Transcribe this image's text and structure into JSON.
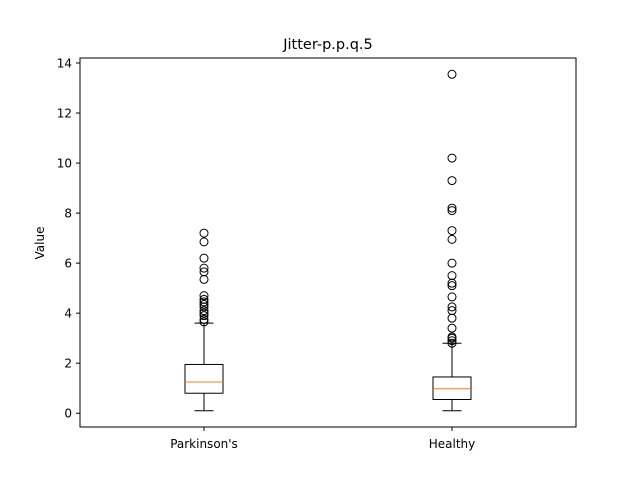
{
  "chart_data": {
    "type": "box",
    "title": "Jitter-p.p.q.5",
    "xlabel": "",
    "ylabel": "Value",
    "ylim": [
      -0.55,
      14.2
    ],
    "yticks": [
      0,
      2,
      4,
      6,
      8,
      10,
      12,
      14
    ],
    "grid": false,
    "colors": {
      "box": "#000000",
      "median": "#ff7f0e",
      "flier": "#000000"
    },
    "categories": [
      "Parkinson's",
      "Healthy"
    ],
    "boxes": [
      {
        "name": "Parkinson's",
        "whisker_low": 0.1,
        "q1": 0.8,
        "median": 1.25,
        "q3": 1.95,
        "whisker_high": 3.6,
        "fliers": [
          3.65,
          3.75,
          3.9,
          4.0,
          4.1,
          4.25,
          4.35,
          4.45,
          4.55,
          4.7,
          5.35,
          5.65,
          5.8,
          6.2,
          6.85,
          7.2
        ]
      },
      {
        "name": "Healthy",
        "whisker_low": 0.1,
        "q1": 0.55,
        "median": 0.98,
        "q3": 1.45,
        "whisker_high": 2.8,
        "fliers": [
          2.8,
          2.9,
          3.0,
          3.05,
          3.4,
          3.8,
          4.1,
          4.25,
          4.65,
          5.1,
          5.2,
          5.5,
          6.0,
          6.95,
          7.3,
          8.1,
          8.2,
          9.3,
          10.2,
          13.55
        ]
      }
    ]
  }
}
